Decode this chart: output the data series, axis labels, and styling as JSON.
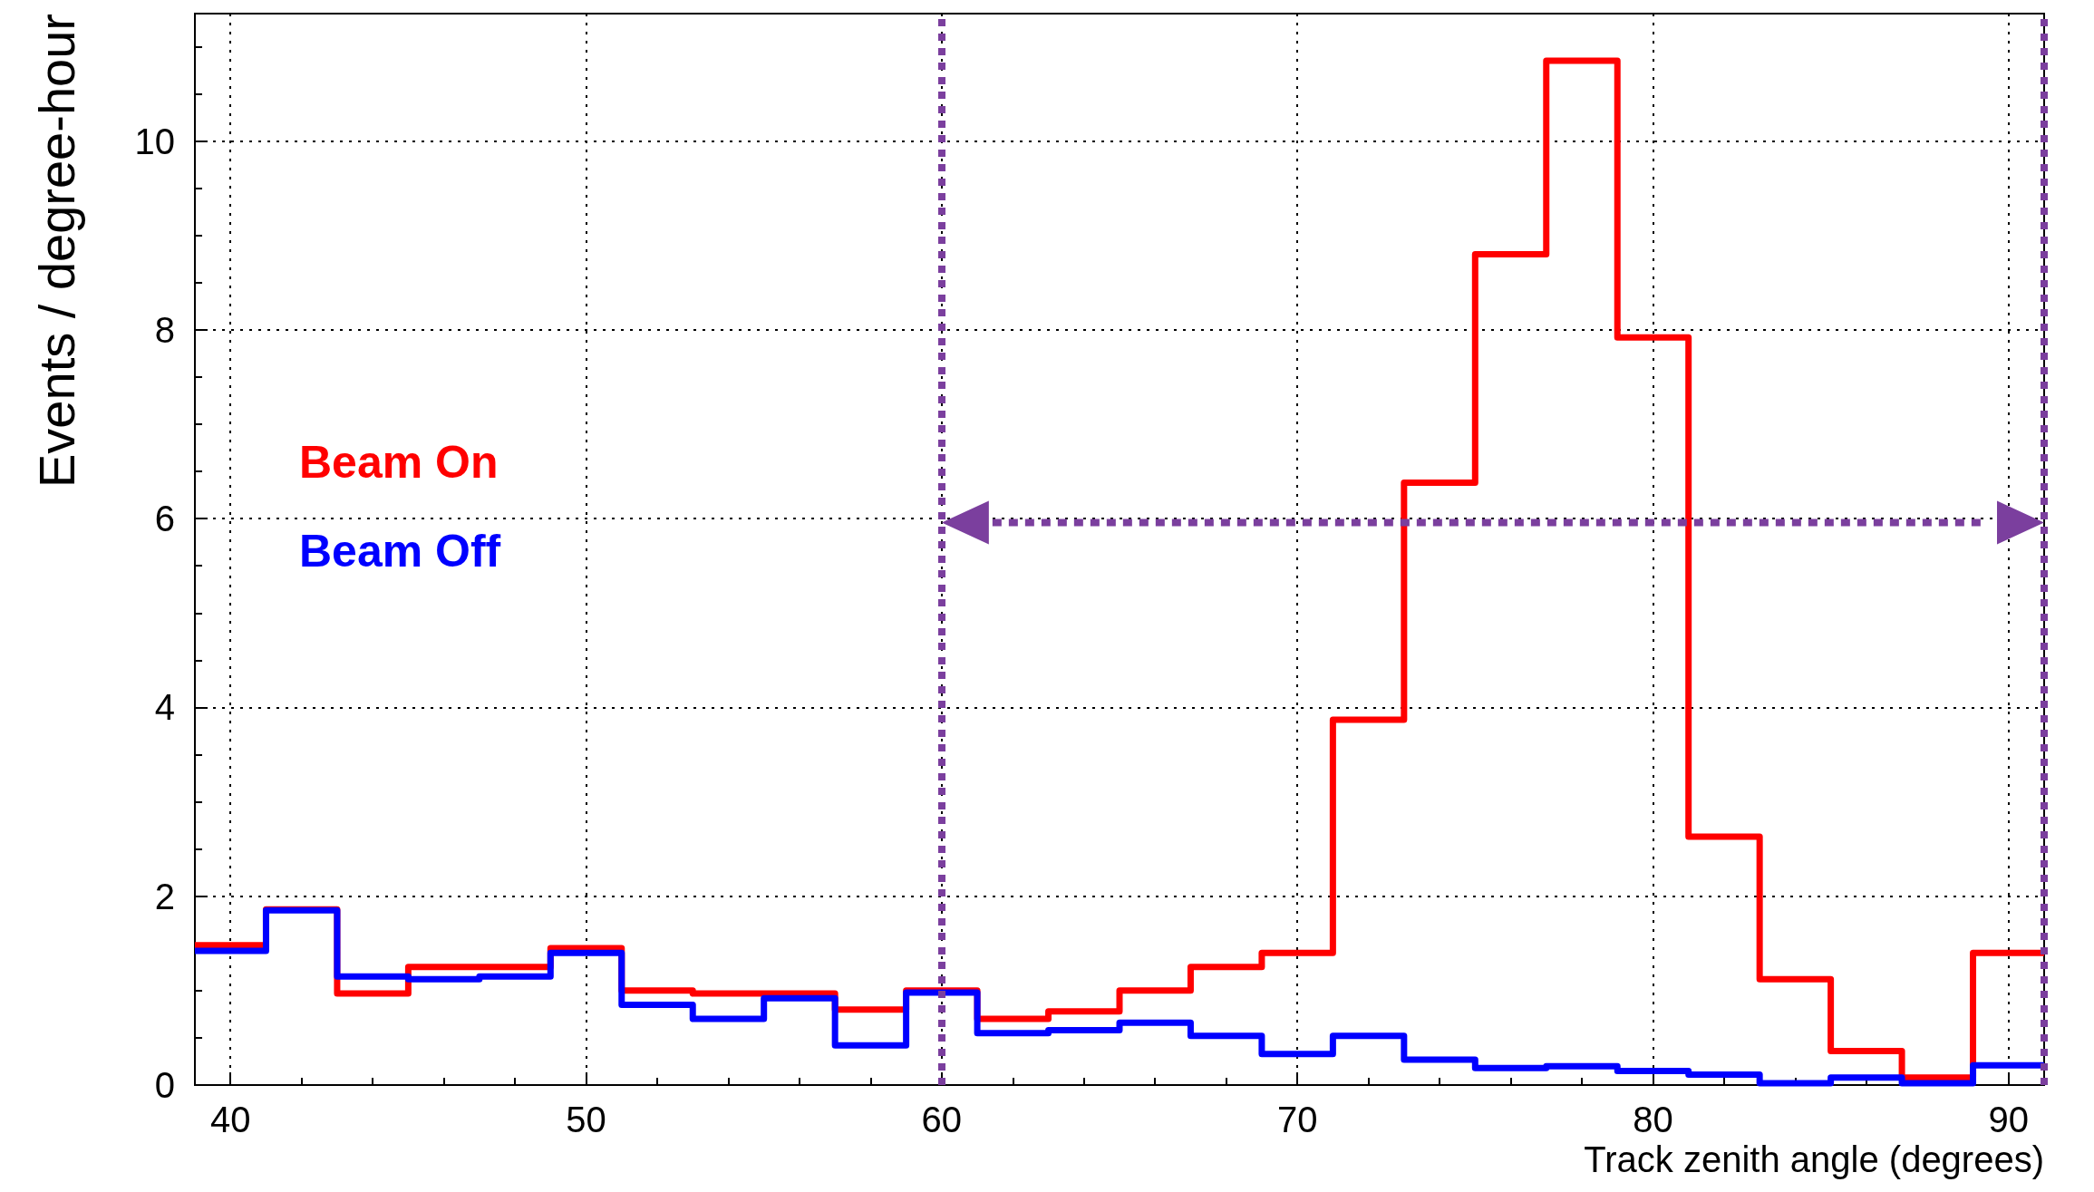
{
  "chart_data": {
    "type": "histogram",
    "xlabel": "Track zenith angle (degrees)",
    "ylabel": "Events / degree-hour",
    "bins": [
      39,
      41,
      43,
      45,
      47,
      49,
      51,
      53,
      55,
      57,
      59,
      61,
      63,
      65,
      67,
      69,
      71,
      73,
      75,
      77,
      79,
      81,
      83,
      85,
      87,
      89,
      91
    ],
    "series": [
      {
        "name": "Beam On",
        "color": "#ff0000",
        "values": [
          1.48,
          1.86,
          0.97,
          1.25,
          1.25,
          1.45,
          1.0,
          0.97,
          0.97,
          0.8,
          1.0,
          0.7,
          0.78,
          1.0,
          1.25,
          1.4,
          3.87,
          6.38,
          8.8,
          10.85,
          7.92,
          2.63,
          1.12,
          0.36,
          0.08,
          1.4
        ]
      },
      {
        "name": "Beam Off",
        "color": "#0000ff",
        "values": [
          1.42,
          1.85,
          1.15,
          1.12,
          1.15,
          1.4,
          0.85,
          0.7,
          0.92,
          0.42,
          0.98,
          0.55,
          0.58,
          0.66,
          0.52,
          0.33,
          0.52,
          0.27,
          0.18,
          0.2,
          0.15,
          0.11,
          0.02,
          0.08,
          0.02,
          0.21
        ]
      }
    ],
    "xlim": [
      39,
      91
    ],
    "xticks": [
      40,
      50,
      60,
      70,
      80,
      90
    ],
    "ylim": [
      0,
      11.35
    ],
    "yticks": [
      0,
      2,
      4,
      6,
      8,
      10
    ],
    "grid": true,
    "legend": "left",
    "ref_lines": [
      {
        "axis": "x",
        "value": 60,
        "color": "#7b3f9e",
        "line_style": "dotted"
      },
      {
        "axis": "x",
        "value": 91,
        "color": "#7b3f9e",
        "line_style": "dotted"
      }
    ]
  }
}
